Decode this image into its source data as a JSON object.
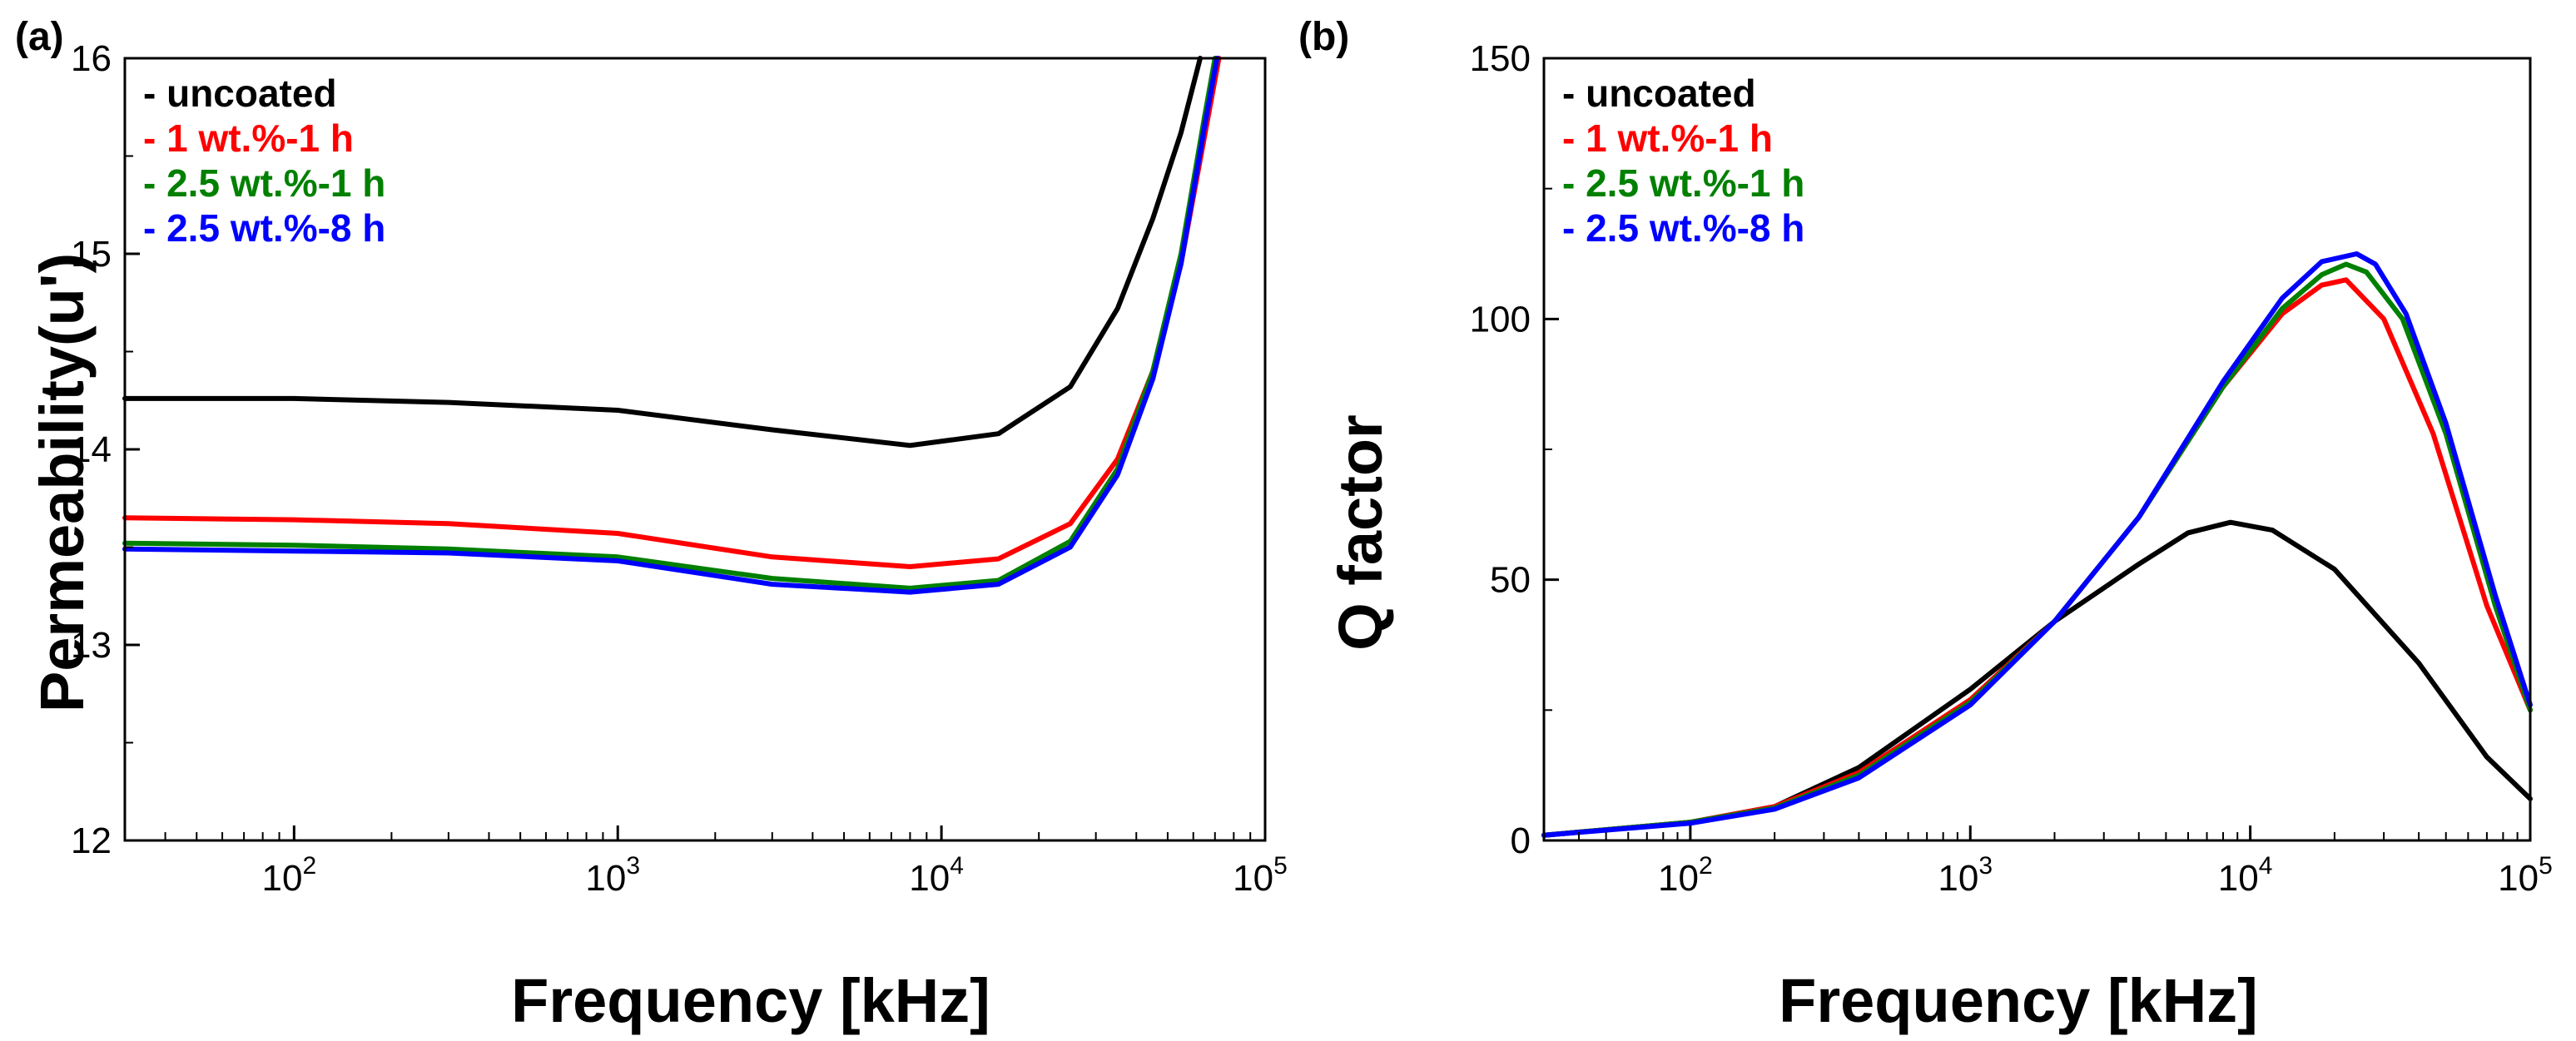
{
  "colors": {
    "uncoated": "#000000",
    "one_wt_1h": "#ff0000",
    "two5_wt_1h": "#008000",
    "two5_wt_8h": "#0000ff"
  },
  "chart_data": [
    {
      "panel_label": "(a)",
      "type": "line",
      "xlabel": "Frequency [kHz]",
      "ylabel": "Permeability(u')",
      "xscale": "log",
      "xlim": [
        30,
        100000
      ],
      "ylim": [
        12,
        16
      ],
      "xticks": [
        {
          "value": 100,
          "base": "10",
          "exp": "2"
        },
        {
          "value": 1000,
          "base": "10",
          "exp": "3"
        },
        {
          "value": 10000,
          "base": "10",
          "exp": "4"
        },
        {
          "value": 100000,
          "base": "10",
          "exp": "5"
        }
      ],
      "yticks": [
        {
          "value": 12,
          "label": "12"
        },
        {
          "value": 13,
          "label": "13"
        },
        {
          "value": 14,
          "label": "14"
        },
        {
          "value": 15,
          "label": "15"
        },
        {
          "value": 16,
          "label": "16"
        }
      ],
      "legend_position": "top-left",
      "series": [
        {
          "name": "- uncoated",
          "color": "#000000",
          "x": [
            30,
            100,
            300,
            1000,
            3000,
            8000,
            15000,
            25000,
            35000,
            45000,
            55000,
            63000
          ],
          "y": [
            14.26,
            14.26,
            14.24,
            14.2,
            14.1,
            14.02,
            14.08,
            14.32,
            14.72,
            15.18,
            15.62,
            16.0
          ]
        },
        {
          "name": "- 1 wt.%-1  h",
          "color": "#ff0000",
          "x": [
            30,
            100,
            300,
            1000,
            3000,
            8000,
            15000,
            25000,
            35000,
            45000,
            55000,
            65000,
            72000
          ],
          "y": [
            13.65,
            13.64,
            13.62,
            13.57,
            13.45,
            13.4,
            13.44,
            13.62,
            13.95,
            14.4,
            14.95,
            15.6,
            16.0
          ]
        },
        {
          "name": "- 2.5 wt.%-1  h",
          "color": "#008000",
          "x": [
            30,
            100,
            300,
            1000,
            3000,
            8000,
            15000,
            25000,
            35000,
            45000,
            55000,
            65000,
            70000
          ],
          "y": [
            13.52,
            13.51,
            13.49,
            13.45,
            13.34,
            13.29,
            13.33,
            13.53,
            13.9,
            14.4,
            15.0,
            15.7,
            16.0
          ]
        },
        {
          "name": "- 2.5 wt.%-8  h",
          "color": "#0000ff",
          "x": [
            30,
            100,
            300,
            1000,
            3000,
            8000,
            15000,
            25000,
            35000,
            45000,
            55000,
            65000,
            71000
          ],
          "y": [
            13.49,
            13.48,
            13.47,
            13.43,
            13.31,
            13.27,
            13.31,
            13.5,
            13.87,
            14.36,
            14.95,
            15.65,
            16.0
          ]
        }
      ]
    },
    {
      "panel_label": "(b)",
      "type": "line",
      "xlabel": "Frequency [kHz]",
      "ylabel": "Q factor",
      "xscale": "log",
      "xlim": [
        30,
        100000
      ],
      "ylim": [
        0,
        150
      ],
      "xticks": [
        {
          "value": 100,
          "base": "10",
          "exp": "2"
        },
        {
          "value": 1000,
          "base": "10",
          "exp": "3"
        },
        {
          "value": 10000,
          "base": "10",
          "exp": "4"
        },
        {
          "value": 100000,
          "base": "10",
          "exp": "5"
        }
      ],
      "yticks": [
        {
          "value": 0,
          "label": "0"
        },
        {
          "value": 50,
          "label": "50"
        },
        {
          "value": 100,
          "label": "100"
        },
        {
          "value": 150,
          "label": "150"
        }
      ],
      "legend_position": "top-left",
      "series": [
        {
          "name": "- uncoated",
          "color": "#000000",
          "x": [
            30,
            100,
            200,
            400,
            1000,
            2000,
            4000,
            6000,
            8500,
            12000,
            20000,
            40000,
            70000,
            100000
          ],
          "y": [
            1,
            3.5,
            6.5,
            14,
            29,
            42,
            53,
            59,
            61,
            59.5,
            52,
            34,
            16,
            8
          ]
        },
        {
          "name": "- 1 wt.%-1  h",
          "color": "#ff0000",
          "x": [
            30,
            100,
            200,
            400,
            1000,
            2000,
            4000,
            8000,
            13000,
            18000,
            22000,
            30000,
            45000,
            70000,
            100000
          ],
          "y": [
            1,
            3.5,
            6.5,
            13,
            27,
            42,
            62,
            87,
            101,
            106.5,
            107.5,
            100,
            78,
            45,
            25
          ]
        },
        {
          "name": "- 2.5 wt.%-1  h",
          "color": "#008000",
          "x": [
            30,
            100,
            200,
            400,
            1000,
            2000,
            4000,
            8000,
            13000,
            18000,
            22000,
            26000,
            35000,
            50000,
            75000,
            100000
          ],
          "y": [
            1,
            3.5,
            6.2,
            12.5,
            26.5,
            42,
            62,
            87,
            102,
            108.5,
            110.5,
            109,
            100,
            78,
            45,
            25
          ]
        },
        {
          "name": "- 2.5 wt.%-8  h",
          "color": "#0000ff",
          "x": [
            30,
            100,
            200,
            400,
            1000,
            2000,
            4000,
            8000,
            13000,
            18000,
            24000,
            28000,
            36000,
            50000,
            75000,
            100000
          ],
          "y": [
            1,
            3.3,
            6,
            12,
            26,
            42,
            62,
            88,
            104,
            111,
            112.5,
            110.5,
            101,
            80,
            47,
            26
          ]
        }
      ]
    }
  ]
}
